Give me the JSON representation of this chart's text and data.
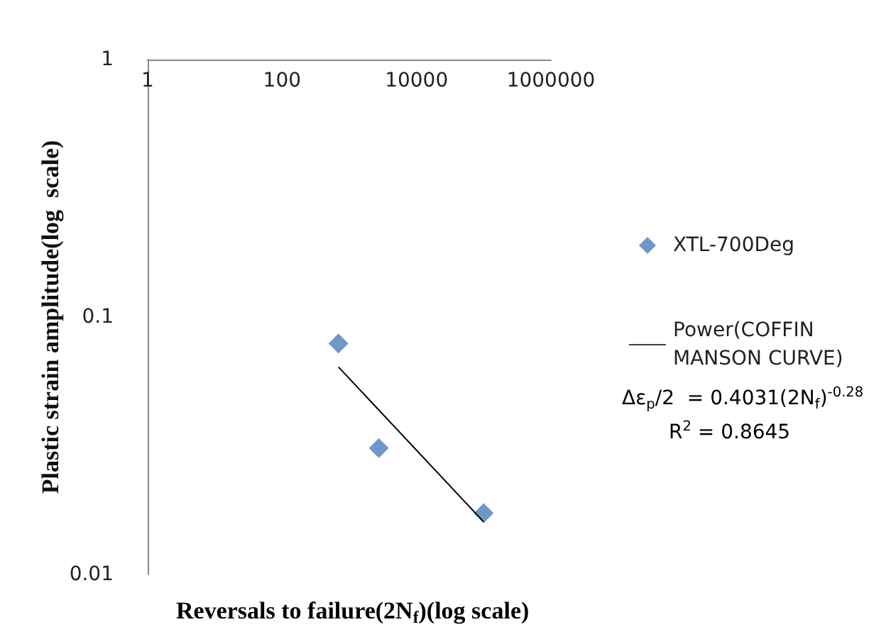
{
  "chart_data": {
    "type": "scatter",
    "xlabel": "Reversals to failure(2N$_{f}$)(log scale)",
    "ylabel": "Plastic strain amplitude(log  scale)",
    "series": [
      {
        "name": "XTL-700Deg",
        "color": "#4a7ebb",
        "marker": "diamond",
        "x": [
          690,
          2750,
          100000
        ],
        "values": [
          0.079,
          0.031,
          0.0173
        ]
      },
      {
        "name": "Power(COFFIN MANSON CURVE)",
        "type": "line",
        "color": "#000000",
        "marker": "none",
        "line_style": "solid",
        "x": [
          690,
          100000
        ],
        "values": [
          0.064,
          0.016
        ]
      }
    ],
    "log": "xy",
    "xlim": [
      1,
      1000000
    ],
    "xticks": [
      1,
      100,
      10000,
      1000000
    ],
    "ylim": [
      0.01,
      1
    ],
    "yticks": [
      0.01,
      0.1,
      1
    ],
    "grid": false,
    "legend": "right",
    "annotations": [
      "Δε$_{p}$/2  = 0.4031(2N$_{f}$)$^{-0.28}$",
      "R$^{2}$ = 0.8645"
    ]
  }
}
